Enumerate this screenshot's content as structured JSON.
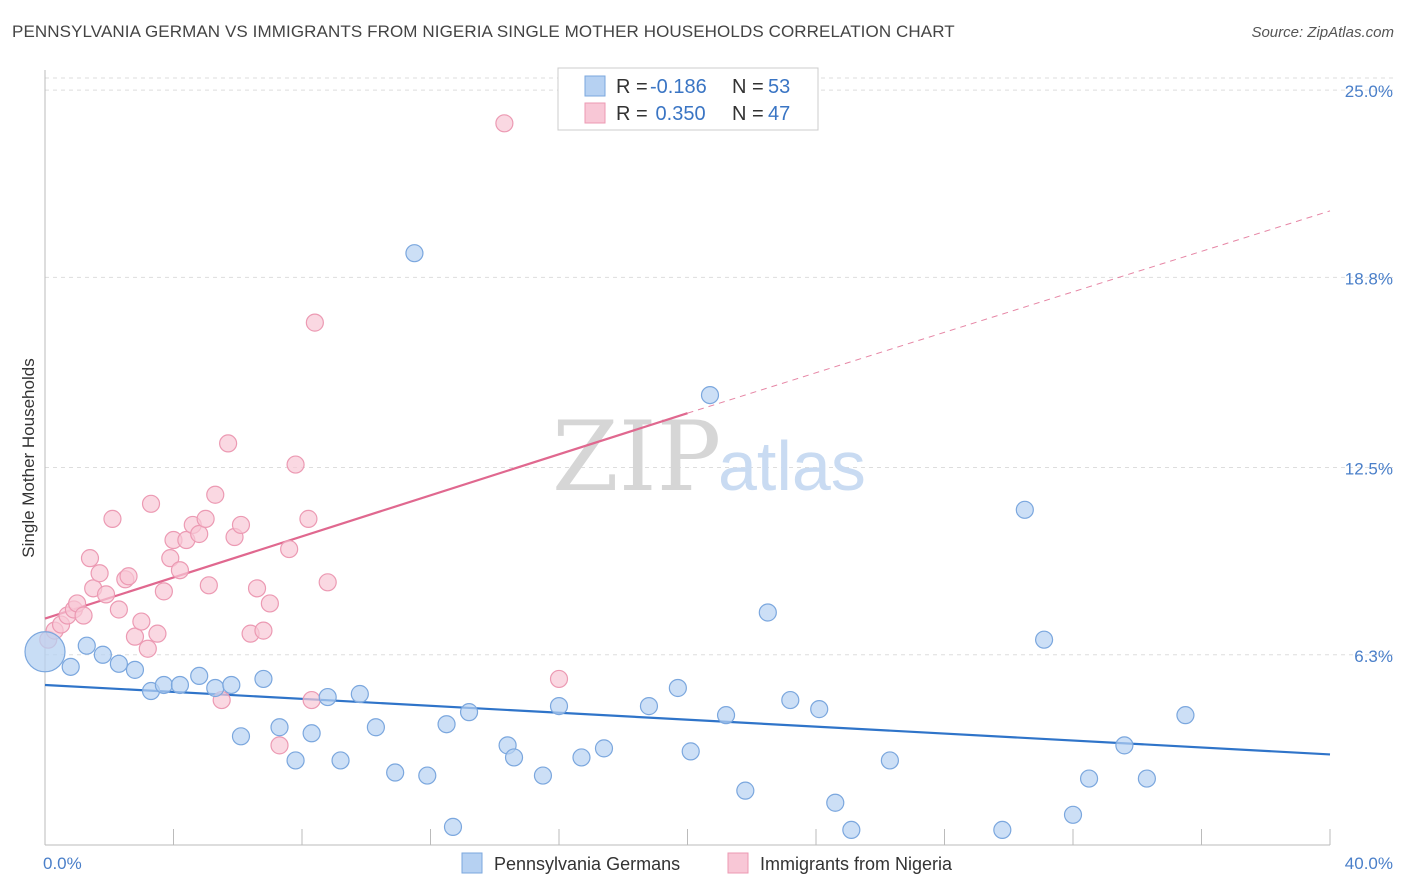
{
  "title": "PENNSYLVANIA GERMAN VS IMMIGRANTS FROM NIGERIA SINGLE MOTHER HOUSEHOLDS CORRELATION CHART",
  "source": "Source: ZipAtlas.com",
  "watermark": {
    "zip": "ZIP",
    "atlas": "atlas"
  },
  "colors": {
    "blue_fill": "#b6d1f2",
    "blue_stroke": "#7ba7de",
    "blue_line": "#2f74c9",
    "pink_fill": "#f8c7d6",
    "pink_stroke": "#ec9ab3",
    "pink_line": "#e0688f",
    "grid": "#dddddd",
    "tick_label": "#4a7fc9"
  },
  "legend": {
    "rows": [
      {
        "r_label": "R = ",
        "r_value": "-0.186",
        "n_label": "N = ",
        "n_value": "53",
        "series": "blue"
      },
      {
        "r_label": "R = ",
        "r_value": " 0.350",
        "n_label": "N = ",
        "n_value": "47",
        "series": "pink"
      }
    ]
  },
  "chart_data": {
    "type": "scatter",
    "title": "PENNSYLVANIA GERMAN VS IMMIGRANTS FROM NIGERIA SINGLE MOTHER HOUSEHOLDS CORRELATION CHART",
    "xlabel": "",
    "ylabel": "Single Mother Households",
    "xlim": [
      0,
      40
    ],
    "ylim": [
      0,
      25.6
    ],
    "x_tick_labels": [
      "0.0%",
      "40.0%"
    ],
    "y_ticks": [
      6.3,
      12.5,
      18.8,
      25.0
    ],
    "y_tick_labels": [
      "6.3%",
      "12.5%",
      "18.8%",
      "25.0%"
    ],
    "grid": true,
    "legend_position": "top-center",
    "series": [
      {
        "name": "Pennsylvania Germans",
        "color": "blue",
        "r": -0.186,
        "n": 53,
        "trend": {
          "x": [
            0,
            40
          ],
          "y": [
            5.3,
            3.0
          ],
          "dashed_extension": false
        },
        "points": [
          [
            0.0,
            6.4
          ],
          [
            0.8,
            5.9
          ],
          [
            1.3,
            6.6
          ],
          [
            1.8,
            6.3
          ],
          [
            2.3,
            6.0
          ],
          [
            2.8,
            5.8
          ],
          [
            3.3,
            5.1
          ],
          [
            3.7,
            5.3
          ],
          [
            4.2,
            5.3
          ],
          [
            4.8,
            5.6
          ],
          [
            5.3,
            5.2
          ],
          [
            5.8,
            5.3
          ],
          [
            6.1,
            3.6
          ],
          [
            6.8,
            5.5
          ],
          [
            7.3,
            3.9
          ],
          [
            7.8,
            2.8
          ],
          [
            8.3,
            3.7
          ],
          [
            8.8,
            4.9
          ],
          [
            9.2,
            2.8
          ],
          [
            9.8,
            5.0
          ],
          [
            10.3,
            3.9
          ],
          [
            10.9,
            2.4
          ],
          [
            11.5,
            19.6
          ],
          [
            11.9,
            2.3
          ],
          [
            12.5,
            4.0
          ],
          [
            12.7,
            0.6
          ],
          [
            13.2,
            4.4
          ],
          [
            14.4,
            3.3
          ],
          [
            14.6,
            2.9
          ],
          [
            15.5,
            2.3
          ],
          [
            16.0,
            4.6
          ],
          [
            16.7,
            2.9
          ],
          [
            17.4,
            3.2
          ],
          [
            18.8,
            4.6
          ],
          [
            19.7,
            5.2
          ],
          [
            20.1,
            3.1
          ],
          [
            20.7,
            14.9
          ],
          [
            21.2,
            4.3
          ],
          [
            21.8,
            1.8
          ],
          [
            22.5,
            7.7
          ],
          [
            23.2,
            4.8
          ],
          [
            24.1,
            4.5
          ],
          [
            24.6,
            1.4
          ],
          [
            25.1,
            0.5
          ],
          [
            26.3,
            2.8
          ],
          [
            29.8,
            0.5
          ],
          [
            30.5,
            11.1
          ],
          [
            31.1,
            6.8
          ],
          [
            32.0,
            1.0
          ],
          [
            32.5,
            2.2
          ],
          [
            33.6,
            3.3
          ],
          [
            34.3,
            2.2
          ],
          [
            35.5,
            4.3
          ]
        ]
      },
      {
        "name": "Immigrants from Nigeria",
        "color": "pink",
        "r": 0.35,
        "n": 47,
        "trend": {
          "x": [
            0,
            20
          ],
          "y": [
            7.5,
            14.3
          ],
          "dash_x": [
            20,
            40
          ],
          "dash_y": [
            14.3,
            21.0
          ]
        },
        "points": [
          [
            0.1,
            6.8
          ],
          [
            0.3,
            7.1
          ],
          [
            0.5,
            7.3
          ],
          [
            0.7,
            7.6
          ],
          [
            0.9,
            7.8
          ],
          [
            1.0,
            8.0
          ],
          [
            1.2,
            7.6
          ],
          [
            1.4,
            9.5
          ],
          [
            1.5,
            8.5
          ],
          [
            1.7,
            9.0
          ],
          [
            1.9,
            8.3
          ],
          [
            2.1,
            10.8
          ],
          [
            2.3,
            7.8
          ],
          [
            2.5,
            8.8
          ],
          [
            2.6,
            8.9
          ],
          [
            2.8,
            6.9
          ],
          [
            3.0,
            7.4
          ],
          [
            3.2,
            6.5
          ],
          [
            3.3,
            11.3
          ],
          [
            3.5,
            7.0
          ],
          [
            3.7,
            8.4
          ],
          [
            3.9,
            9.5
          ],
          [
            4.0,
            10.1
          ],
          [
            4.2,
            9.1
          ],
          [
            4.4,
            10.1
          ],
          [
            4.6,
            10.6
          ],
          [
            4.8,
            10.3
          ],
          [
            5.0,
            10.8
          ],
          [
            5.1,
            8.6
          ],
          [
            5.3,
            11.6
          ],
          [
            5.5,
            4.8
          ],
          [
            5.7,
            13.3
          ],
          [
            5.9,
            10.2
          ],
          [
            6.1,
            10.6
          ],
          [
            6.4,
            7.0
          ],
          [
            6.6,
            8.5
          ],
          [
            6.8,
            7.1
          ],
          [
            7.0,
            8.0
          ],
          [
            7.3,
            3.3
          ],
          [
            7.6,
            9.8
          ],
          [
            7.8,
            12.6
          ],
          [
            8.2,
            10.8
          ],
          [
            8.4,
            17.3
          ],
          [
            8.8,
            8.7
          ],
          [
            8.3,
            4.8
          ],
          [
            14.3,
            23.9
          ],
          [
            16.0,
            5.5
          ]
        ]
      }
    ]
  }
}
